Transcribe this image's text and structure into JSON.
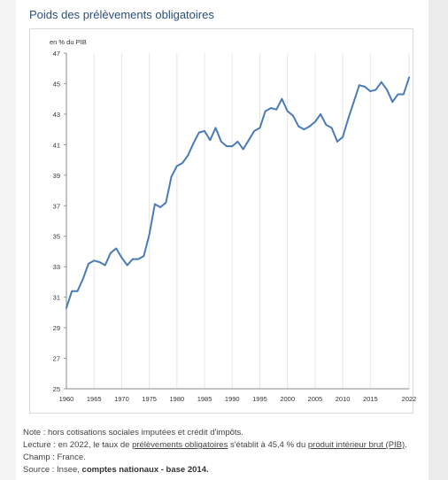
{
  "title": "Poids des prélèvements obligatoires",
  "unit_label": "en % du PIB",
  "notes": {
    "note": "Note : hors cotisations sociales imputées et crédit d'impôts.",
    "lecture_prefix": "Lecture : en 2022, le taux de ",
    "lecture_link1": "prélèvements obligatoires",
    "lecture_middle": " s'établit à 45,4 % du ",
    "lecture_link2": "produit intérieur brut (PIB)",
    "lecture_suffix": ".",
    "champ": "Champ : France.",
    "source_prefix": "Source : Insee, ",
    "source_bold": "comptes nationaux - base 2014."
  },
  "colors": {
    "line": "#4a7bb7",
    "title": "#2c4f7c",
    "grid": "#e6e6e6"
  },
  "chart_data": {
    "type": "line",
    "ylabel": "en % du PIB",
    "ylim": [
      25,
      47
    ],
    "yticks": [
      25,
      27,
      29,
      31,
      33,
      35,
      37,
      39,
      41,
      43,
      45,
      47
    ],
    "xlim": [
      1960,
      2022
    ],
    "xticks": [
      1960,
      1965,
      1970,
      1975,
      1980,
      1985,
      1990,
      1995,
      2000,
      2005,
      2010,
      2015,
      2022
    ],
    "grid": "vertical",
    "x": [
      1960,
      1961,
      1962,
      1963,
      1964,
      1965,
      1966,
      1967,
      1968,
      1969,
      1970,
      1971,
      1972,
      1973,
      1974,
      1975,
      1976,
      1977,
      1978,
      1979,
      1980,
      1981,
      1982,
      1983,
      1984,
      1985,
      1986,
      1987,
      1988,
      1989,
      1990,
      1991,
      1992,
      1993,
      1994,
      1995,
      1996,
      1997,
      1998,
      1999,
      2000,
      2001,
      2002,
      2003,
      2004,
      2005,
      2006,
      2007,
      2008,
      2009,
      2010,
      2011,
      2012,
      2013,
      2014,
      2015,
      2016,
      2017,
      2018,
      2019,
      2020,
      2021,
      2022
    ],
    "values": [
      30.3,
      31.4,
      31.4,
      32.2,
      33.2,
      33.4,
      33.3,
      33.1,
      33.9,
      34.2,
      33.6,
      33.1,
      33.5,
      33.5,
      33.7,
      35.1,
      37.1,
      36.9,
      37.2,
      38.9,
      39.6,
      39.8,
      40.3,
      41.1,
      41.8,
      41.9,
      41.3,
      42.1,
      41.2,
      40.9,
      40.9,
      41.2,
      40.7,
      41.3,
      41.9,
      42.1,
      43.2,
      43.4,
      43.3,
      44.0,
      43.2,
      42.9,
      42.2,
      42.0,
      42.2,
      42.5,
      43.0,
      42.3,
      42.1,
      41.2,
      41.5,
      42.7,
      43.8,
      44.9,
      44.8,
      44.5,
      44.6,
      45.1,
      44.6,
      43.8,
      44.3,
      44.3,
      45.4
    ]
  }
}
